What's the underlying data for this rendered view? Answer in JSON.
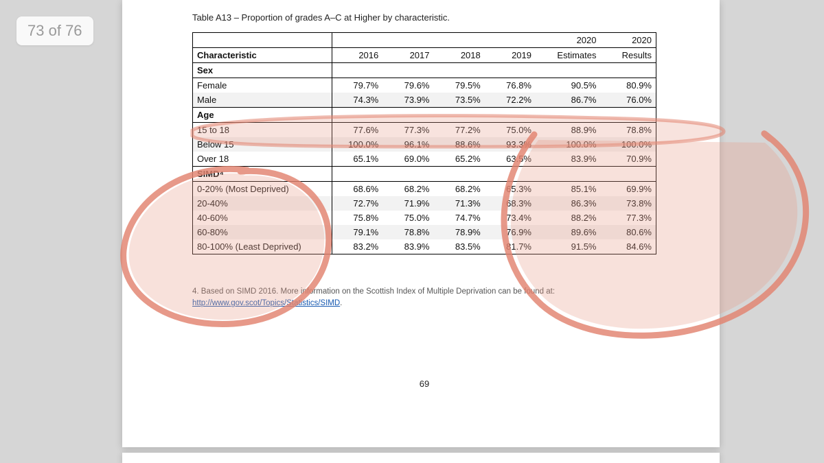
{
  "badge": {
    "current": "73",
    "total": "76",
    "sep": " of "
  },
  "caption": "Table A13 – Proportion of grades A–C at Higher by characteristic.",
  "table": {
    "stub_header": "Characteristic",
    "year_headers": [
      "2016",
      "2017",
      "2018",
      "2019"
    ],
    "col_2020_est_line1": "2020",
    "col_2020_est_line2": "Estimates",
    "col_2020_res_line1": "2020",
    "col_2020_res_line2": "Results",
    "sections": [
      {
        "label": "Sex",
        "rows": [
          {
            "stub": "Female",
            "cells": [
              "79.7%",
              "79.6%",
              "79.5%",
              "76.8%",
              "90.5%",
              "80.9%"
            ]
          },
          {
            "stub": "Male",
            "cells": [
              "74.3%",
              "73.9%",
              "73.5%",
              "72.2%",
              "86.7%",
              "76.0%"
            ]
          }
        ]
      },
      {
        "label": "Age",
        "rows": [
          {
            "stub": "15 to 18",
            "cells": [
              "77.6%",
              "77.3%",
              "77.2%",
              "75.0%",
              "88.9%",
              "78.8%"
            ]
          },
          {
            "stub": "Below 15",
            "cells": [
              "100.0%",
              "96.1%",
              "88.6%",
              "93.3%",
              "100.0%",
              "100.0%"
            ]
          },
          {
            "stub": "Over 18",
            "cells": [
              "65.1%",
              "69.0%",
              "65.2%",
              "63.5%",
              "83.9%",
              "70.9%"
            ]
          }
        ]
      },
      {
        "label": "SIMD⁴",
        "rows": [
          {
            "stub": "0-20% (Most Deprived)",
            "cells": [
              "68.6%",
              "68.2%",
              "68.2%",
              "65.3%",
              "85.1%",
              "69.9%"
            ]
          },
          {
            "stub": "20-40%",
            "cells": [
              "72.7%",
              "71.9%",
              "71.3%",
              "68.3%",
              "86.3%",
              "73.8%"
            ]
          },
          {
            "stub": "40-60%",
            "cells": [
              "75.8%",
              "75.0%",
              "74.7%",
              "73.4%",
              "88.2%",
              "77.3%"
            ]
          },
          {
            "stub": "60-80%",
            "cells": [
              "79.1%",
              "78.8%",
              "78.9%",
              "76.9%",
              "89.6%",
              "80.6%"
            ]
          },
          {
            "stub": "80-100% (Least Deprived)",
            "cells": [
              "83.2%",
              "83.9%",
              "83.5%",
              "81.7%",
              "91.5%",
              "84.6%"
            ]
          }
        ]
      }
    ]
  },
  "footnote": {
    "text": "4. Based on SIMD 2016. More information on the Scottish Index of Multiple Deprivation can be found at:",
    "link_text": "http://www.gov.scot/Topics/Statistics/SIMD"
  },
  "page_number": "69",
  "annotation_style": {
    "stroke": "#e2836f",
    "fill": "#e79b87",
    "opacity_fill": 0.32,
    "opacity_stroke": 0.85,
    "stroke_width": 7
  }
}
